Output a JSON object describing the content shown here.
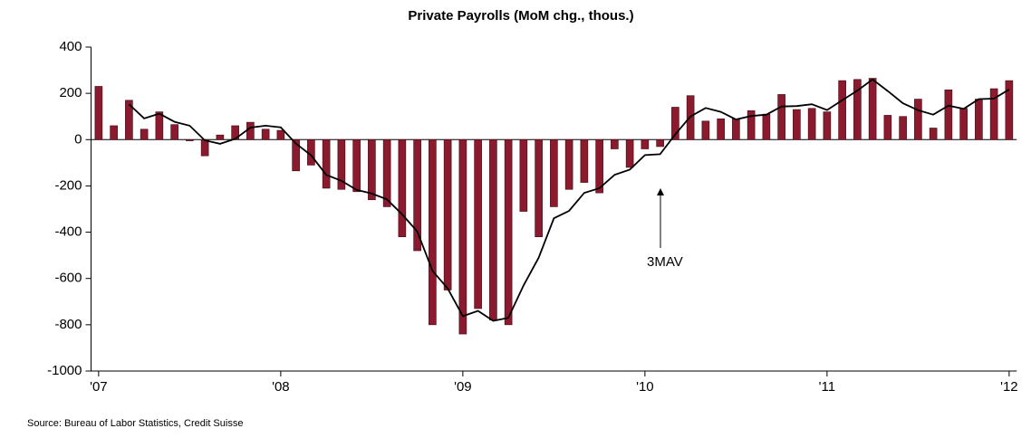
{
  "chart_data": {
    "type": "bar",
    "title": "Private Payrolls (MoM chg., thous.)",
    "categories": [
      "'07",
      null,
      null,
      null,
      null,
      null,
      null,
      null,
      null,
      null,
      null,
      null,
      "'08",
      null,
      null,
      null,
      null,
      null,
      null,
      null,
      null,
      null,
      null,
      null,
      "'09",
      null,
      null,
      null,
      null,
      null,
      null,
      null,
      null,
      null,
      null,
      null,
      "'10",
      null,
      null,
      null,
      null,
      null,
      null,
      null,
      null,
      null,
      null,
      null,
      "'11",
      null,
      null,
      null,
      null,
      null,
      null,
      null,
      null,
      null,
      null,
      null,
      "'12"
    ],
    "series": [
      {
        "name": "Private Payrolls",
        "color": "#8b1a2e",
        "values": [
          230,
          60,
          170,
          45,
          120,
          65,
          -5,
          -70,
          20,
          60,
          75,
          45,
          40,
          -135,
          -110,
          -210,
          -215,
          -225,
          -260,
          -290,
          -420,
          -480,
          -800,
          -650,
          -840,
          -730,
          -780,
          -800,
          -310,
          -420,
          -290,
          -215,
          -185,
          -230,
          -40,
          -120,
          -40,
          -30,
          140,
          190,
          80,
          90,
          90,
          125,
          110,
          195,
          130,
          135,
          120,
          255,
          260,
          265,
          105,
          100,
          175,
          50,
          215,
          135,
          175,
          220,
          255
        ]
      },
      {
        "name": "3MAV",
        "color": "#000000",
        "values": [
          null,
          null,
          153,
          92,
          112,
          77,
          60,
          -3,
          -18,
          3,
          52,
          60,
          53,
          -17,
          -68,
          -152,
          -178,
          -217,
          -233,
          -258,
          -323,
          -397,
          -567,
          -643,
          -763,
          -740,
          -783,
          -770,
          -630,
          -510,
          -340,
          -308,
          -230,
          -210,
          -152,
          -130,
          -67,
          -63,
          23,
          100,
          137,
          120,
          87,
          102,
          108,
          143,
          145,
          153,
          128,
          170,
          212,
          260,
          210,
          157,
          127,
          108,
          147,
          133,
          175,
          177,
          217
        ]
      }
    ],
    "annotation": "3MAV",
    "source": "Source: Bureau of Labor Statistics, Credit Suisse",
    "ylim": [
      -1000,
      400
    ],
    "yticks": [
      400,
      200,
      0,
      -200,
      -400,
      -600,
      -800,
      -1000
    ]
  }
}
